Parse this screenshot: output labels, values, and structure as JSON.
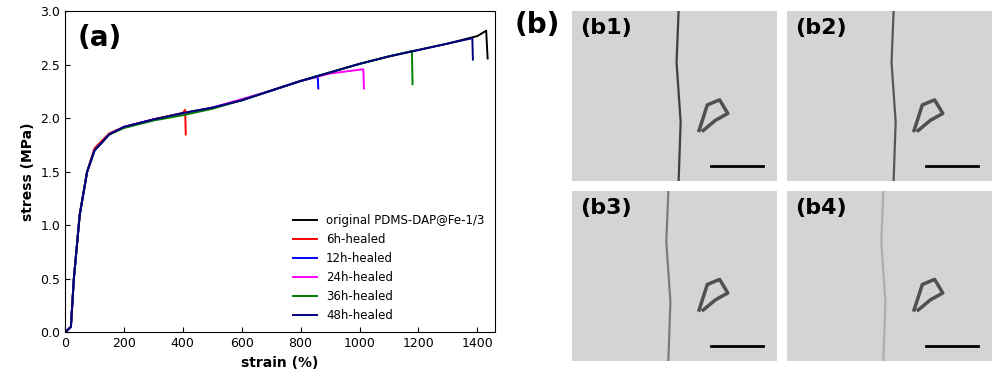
{
  "chart_data": {
    "type": "line",
    "annotations": [
      "(a)"
    ],
    "x_label": "strain (%)",
    "y_label": "stress (MPa)",
    "xlim": [
      0,
      1460
    ],
    "xticks": [
      0,
      200,
      400,
      600,
      800,
      1000,
      1200,
      1400
    ],
    "ylim": [
      0,
      3.0
    ],
    "yticks": [
      {
        "value": 0,
        "label": "0.0"
      },
      0.5,
      {
        "value": 1,
        "label": "1.0"
      },
      1.5,
      {
        "value": 2,
        "label": "2.0"
      },
      2.5,
      {
        "value": 3,
        "label": "3.0"
      }
    ],
    "legend": "lower right",
    "series": [
      {
        "name": "original PDMS-DAP@Fe-1/3",
        "color": "#000000",
        "x": [
          0,
          20,
          30,
          50,
          75,
          100,
          150,
          200,
          300,
          400,
          500,
          600,
          700,
          800,
          900,
          1000,
          1100,
          1200,
          1300,
          1400,
          1430,
          1435
        ],
        "values": [
          0,
          0.05,
          0.5,
          1.1,
          1.5,
          1.7,
          1.85,
          1.92,
          1.99,
          2.05,
          2.1,
          2.17,
          2.26,
          2.35,
          2.43,
          2.51,
          2.58,
          2.64,
          2.7,
          2.77,
          2.82,
          2.56
        ]
      },
      {
        "name": "6h-healed",
        "color": "#ff0000",
        "x": [
          0,
          20,
          30,
          50,
          75,
          100,
          150,
          200,
          300,
          400,
          408,
          410
        ],
        "values": [
          0,
          0.05,
          0.5,
          1.1,
          1.5,
          1.72,
          1.86,
          1.92,
          1.99,
          2.05,
          2.08,
          1.85
        ]
      },
      {
        "name": "12h-healed",
        "color": "#0000ff",
        "x": [
          0,
          20,
          30,
          50,
          75,
          100,
          150,
          200,
          300,
          400,
          500,
          600,
          700,
          800,
          858,
          860
        ],
        "values": [
          0,
          0.05,
          0.5,
          1.1,
          1.5,
          1.7,
          1.85,
          1.92,
          1.99,
          2.04,
          2.1,
          2.17,
          2.26,
          2.35,
          2.39,
          2.28
        ]
      },
      {
        "name": "24h-healed",
        "color": "#ff00ff",
        "x": [
          0,
          20,
          30,
          50,
          75,
          100,
          150,
          200,
          300,
          400,
          500,
          600,
          700,
          800,
          900,
          1013,
          1015
        ],
        "values": [
          0,
          0.05,
          0.5,
          1.1,
          1.5,
          1.7,
          1.85,
          1.92,
          1.99,
          2.04,
          2.1,
          2.18,
          2.26,
          2.35,
          2.42,
          2.46,
          2.28
        ]
      },
      {
        "name": "36h-healed",
        "color": "#008000",
        "x": [
          0,
          20,
          30,
          50,
          75,
          100,
          150,
          200,
          300,
          400,
          500,
          600,
          700,
          800,
          900,
          1000,
          1100,
          1178,
          1180
        ],
        "values": [
          0,
          0.05,
          0.5,
          1.1,
          1.5,
          1.7,
          1.85,
          1.91,
          1.98,
          2.03,
          2.09,
          2.17,
          2.26,
          2.35,
          2.43,
          2.51,
          2.58,
          2.63,
          2.32
        ]
      },
      {
        "name": "48h-healed",
        "color": "#000080",
        "x": [
          0,
          20,
          30,
          50,
          75,
          100,
          150,
          200,
          300,
          400,
          500,
          600,
          700,
          800,
          900,
          1000,
          1100,
          1200,
          1300,
          1383,
          1385
        ],
        "values": [
          0,
          0.05,
          0.5,
          1.1,
          1.5,
          1.7,
          1.85,
          1.92,
          1.99,
          2.05,
          2.1,
          2.17,
          2.26,
          2.35,
          2.43,
          2.51,
          2.58,
          2.64,
          2.7,
          2.75,
          2.55
        ]
      }
    ]
  },
  "figure_b": {
    "label": "(b)",
    "images": [
      "(b1)",
      "(b2)",
      "(b3)",
      "(b4)"
    ]
  }
}
